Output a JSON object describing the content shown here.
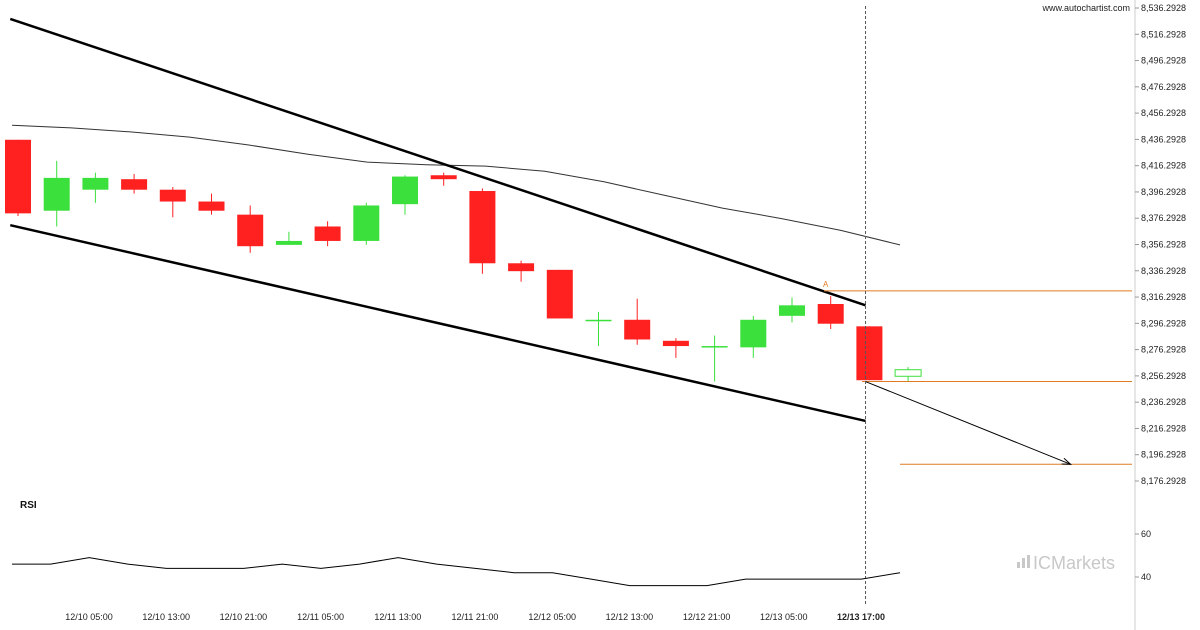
{
  "watermark": {
    "site": "www.autochartist.com",
    "brand": "ICMarkets",
    "brand_prefix": "IC",
    "brand_suffix": "Markets"
  },
  "colors": {
    "up": "#3ce03c",
    "down": "#ff2020",
    "channel": "#000000",
    "ma": "#333333",
    "levels": "#e07b22",
    "rsi": "#000000",
    "vline": "#555555"
  },
  "chart_data": {
    "type": "candlestick",
    "y_ticks": [
      "8,536.2928",
      "8,516.2928",
      "8,496.2928",
      "8,476.2928",
      "8,456.2928",
      "8,436.2928",
      "8,416.2928",
      "8,396.2928",
      "8,376.2928",
      "8,356.2928",
      "8,336.2928",
      "8,316.2928",
      "8,296.2928",
      "8,276.2928",
      "8,256.2928",
      "8,236.2928",
      "8,216.2928",
      "8,196.2928",
      "8,176.2928"
    ],
    "ylim": [
      8170,
      8540
    ],
    "x_ticks": [
      "12/10 05:00",
      "12/10 13:00",
      "12/10 21:00",
      "12/11 05:00",
      "12/11 13:00",
      "12/11 21:00",
      "12/12 05:00",
      "12/12 13:00",
      "12/12 21:00",
      "12/13 05:00",
      "12/13 17:00"
    ],
    "x_tick_bold_index": 10,
    "candles": [
      {
        "o": 8436,
        "h": 8436,
        "l": 8378,
        "c": 8380
      },
      {
        "o": 8382,
        "h": 8420,
        "l": 8370,
        "c": 8407
      },
      {
        "o": 8398,
        "h": 8411,
        "l": 8388,
        "c": 8407
      },
      {
        "o": 8406,
        "h": 8410,
        "l": 8395,
        "c": 8398
      },
      {
        "o": 8398,
        "h": 8400,
        "l": 8377,
        "c": 8389
      },
      {
        "o": 8389,
        "h": 8395,
        "l": 8379,
        "c": 8382
      },
      {
        "o": 8379,
        "h": 8386,
        "l": 8350,
        "c": 8355
      },
      {
        "o": 8356,
        "h": 8366,
        "l": 8356,
        "c": 8359
      },
      {
        "o": 8370,
        "h": 8374,
        "l": 8355,
        "c": 8359
      },
      {
        "o": 8359,
        "h": 8388,
        "l": 8356,
        "c": 8386
      },
      {
        "o": 8387,
        "h": 8409,
        "l": 8379,
        "c": 8408
      },
      {
        "o": 8409,
        "h": 8411,
        "l": 8401,
        "c": 8406
      },
      {
        "o": 8397,
        "h": 8399,
        "l": 8334,
        "c": 8342
      },
      {
        "o": 8342,
        "h": 8344,
        "l": 8328,
        "c": 8336
      },
      {
        "o": 8337,
        "h": 8337,
        "l": 8300,
        "c": 8300
      },
      {
        "o": 8299,
        "h": 8305,
        "l": 8279,
        "c": 8299
      },
      {
        "o": 8299,
        "h": 8315,
        "l": 8280,
        "c": 8284
      },
      {
        "o": 8283,
        "h": 8285,
        "l": 8270,
        "c": 8279
      },
      {
        "o": 8279,
        "h": 8287,
        "l": 8252,
        "c": 8279
      },
      {
        "o": 8278,
        "h": 8302,
        "l": 8270,
        "c": 8299
      },
      {
        "o": 8302,
        "h": 8316,
        "l": 8297,
        "c": 8310
      },
      {
        "o": 8311,
        "h": 8317,
        "l": 8292,
        "c": 8296
      },
      {
        "o": 8294,
        "h": 8294,
        "l": 8253,
        "c": 8253
      },
      {
        "o": 8256,
        "h": 8263,
        "l": 8252,
        "c": 8261
      }
    ],
    "hollow_last": true,
    "upper_channel": {
      "from": {
        "i": -0.2,
        "v": 8528
      },
      "to": {
        "i": 21.9,
        "v": 8310
      }
    },
    "lower_channel": {
      "from": {
        "i": -0.2,
        "v": 8371
      },
      "to": {
        "i": 21.9,
        "v": 8222
      }
    },
    "moving_average": [
      8447,
      8445,
      8442,
      8438,
      8432,
      8425,
      8419,
      8417,
      8416,
      8412,
      8404,
      8394,
      8384,
      8376,
      8367,
      8356
    ],
    "resistance_level": {
      "value": 8321,
      "label": "A"
    },
    "support_level": {
      "value": 8252
    },
    "target_level": {
      "value": 8189
    },
    "projection": {
      "from": {
        "i": 21.9,
        "v": 8252
      },
      "to": {
        "i": 27.2,
        "v": 8189
      }
    },
    "vertical_marker_index": 21.9,
    "rsi": {
      "title": "RSI",
      "ticks": [
        "60",
        "40"
      ],
      "ylim": [
        20,
        80
      ],
      "values": [
        46,
        46,
        49,
        46,
        44,
        44,
        44,
        46,
        44,
        46,
        49,
        46,
        44,
        42,
        42,
        39,
        36,
        36,
        36,
        39,
        39,
        39,
        39,
        42
      ]
    }
  }
}
